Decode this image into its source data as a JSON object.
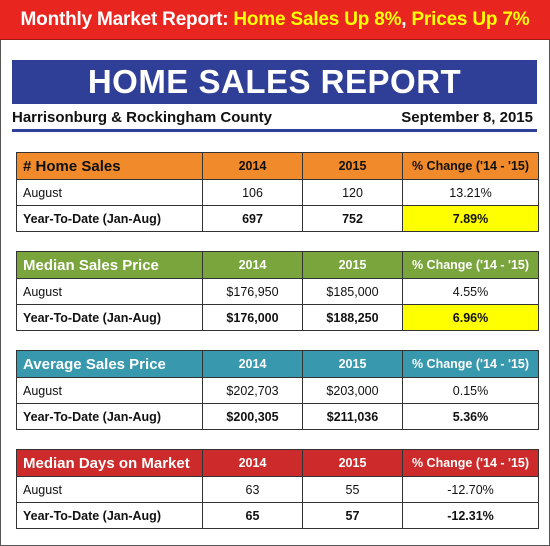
{
  "banner": {
    "part1": "Monthly Market Report: ",
    "part2": "Home Sales Up 8%",
    "part3": ", ",
    "part4": "Prices Up 7%"
  },
  "report": {
    "title": "HOME SALES REPORT",
    "region": "Harrisonburg & Rockingham County",
    "date": "September 8, 2015"
  },
  "colors": {
    "banner_red": "#e8261f",
    "title_blue": "#2f3e97",
    "home_sales_orange": "#f08a2a",
    "median_price_green": "#7aa53c",
    "average_price_teal": "#3798ae",
    "days_on_market_red": "#cd2b2b",
    "highlight_yellow": "#ffff00"
  },
  "tables": [
    {
      "header": "# Home Sales",
      "col_2014": "2014",
      "col_2015": "2015",
      "col_change": "% Change ('14 - '15)",
      "rows": [
        {
          "label": "August",
          "v2014": "106",
          "v2015": "120",
          "change": "13.21%"
        },
        {
          "label": "Year-To-Date (Jan-Aug)",
          "v2014": "697",
          "v2015": "752",
          "change": "7.89%"
        }
      ]
    },
    {
      "header": "Median Sales Price",
      "col_2014": "2014",
      "col_2015": "2015",
      "col_change": "% Change ('14 - '15)",
      "rows": [
        {
          "label": "August",
          "v2014": "$176,950",
          "v2015": "$185,000",
          "change": "4.55%"
        },
        {
          "label": "Year-To-Date (Jan-Aug)",
          "v2014": "$176,000",
          "v2015": "$188,250",
          "change": "6.96%"
        }
      ]
    },
    {
      "header": "Average Sales Price",
      "col_2014": "2014",
      "col_2015": "2015",
      "col_change": "% Change ('14 - '15)",
      "rows": [
        {
          "label": "August",
          "v2014": "$202,703",
          "v2015": "$203,000",
          "change": "0.15%"
        },
        {
          "label": "Year-To-Date (Jan-Aug)",
          "v2014": "$200,305",
          "v2015": "$211,036",
          "change": "5.36%"
        }
      ]
    },
    {
      "header": "Median Days on Market",
      "col_2014": "2014",
      "col_2015": "2015",
      "col_change": "% Change ('14 - '15)",
      "rows": [
        {
          "label": "August",
          "v2014": "63",
          "v2015": "55",
          "change": "-12.70%"
        },
        {
          "label": "Year-To-Date (Jan-Aug)",
          "v2014": "65",
          "v2015": "57",
          "change": "-12.31%"
        }
      ]
    }
  ]
}
